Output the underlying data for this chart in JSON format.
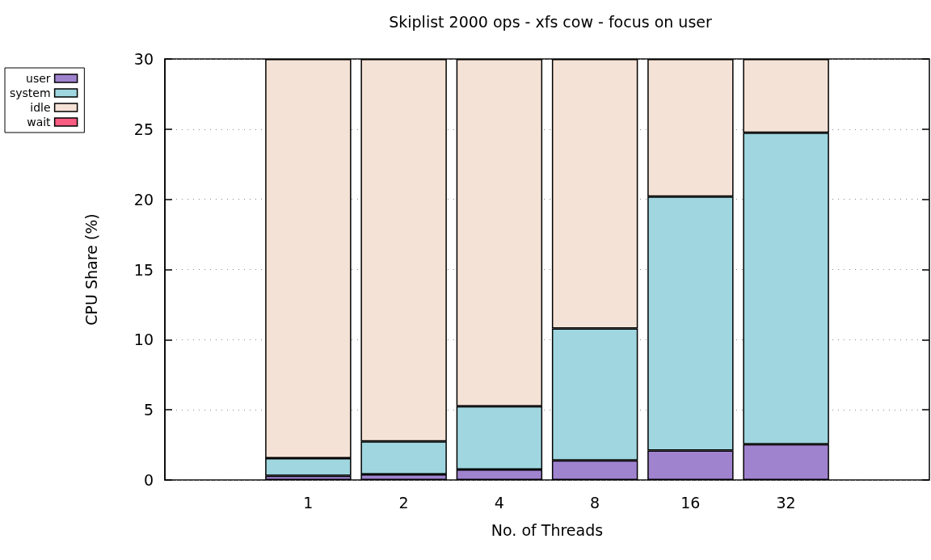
{
  "chart_data": {
    "type": "bar",
    "title": "Skiplist 2000 ops - xfs cow - focus on user",
    "xlabel": "No. of Threads",
    "ylabel": "CPU Share (%)",
    "categories": [
      "1",
      "2",
      "4",
      "8",
      "16",
      "32"
    ],
    "stacked": true,
    "ylim": [
      0,
      30
    ],
    "yticks": [
      0,
      5,
      10,
      15,
      20,
      25,
      30
    ],
    "grid": "y",
    "legend": "top left",
    "series": [
      {
        "name": "user",
        "color": "#a083cf",
        "values": [
          0.3,
          0.4,
          0.75,
          1.4,
          2.1,
          2.55
        ]
      },
      {
        "name": "system",
        "color": "#9fd6df",
        "values": [
          1.25,
          2.35,
          4.5,
          9.4,
          18.1,
          22.2
        ]
      },
      {
        "name": "idle",
        "color": "#f5e2d6",
        "values": [
          28.45,
          27.25,
          24.75,
          19.2,
          9.8,
          5.25
        ]
      },
      {
        "name": "wait",
        "color": "#f85c80",
        "values": [
          0,
          0,
          0,
          0,
          0,
          0
        ]
      }
    ]
  }
}
